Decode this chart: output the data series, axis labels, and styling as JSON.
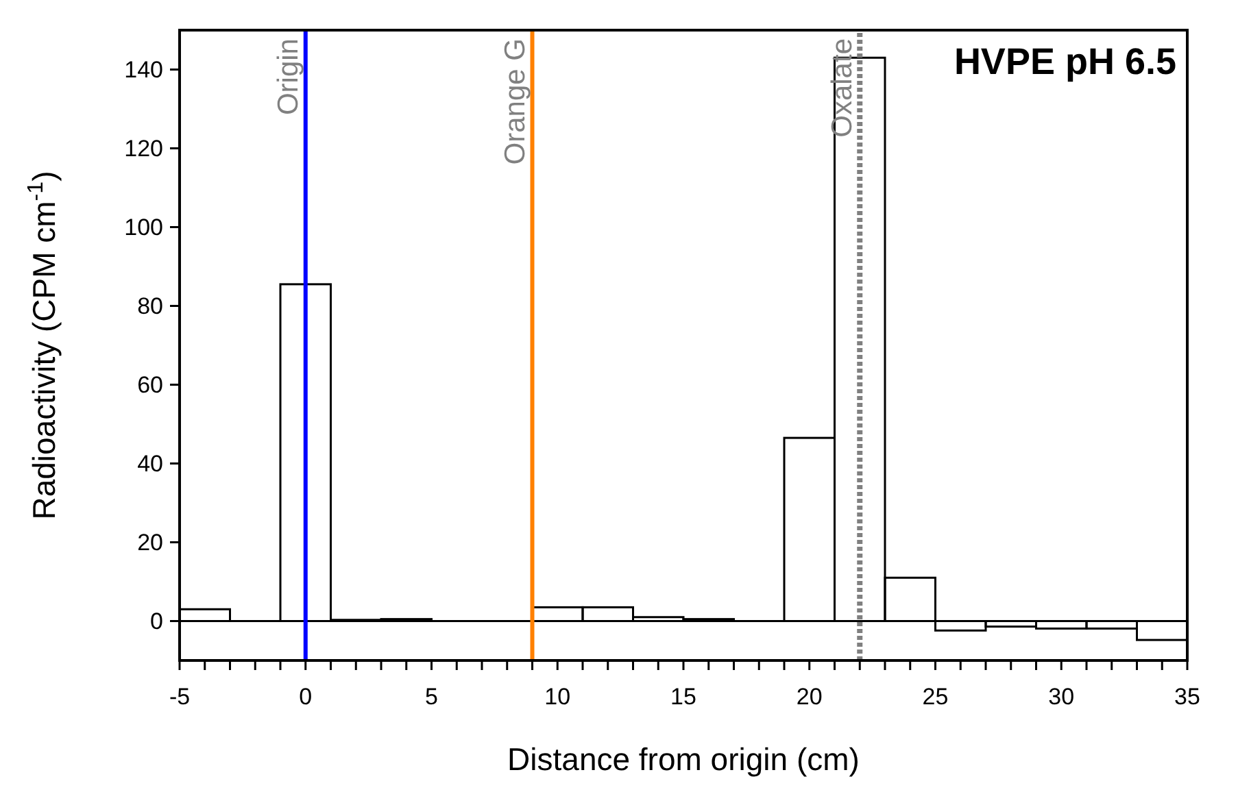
{
  "chart_data": {
    "type": "histogram",
    "title": "HVPE pH 6.5",
    "xlabel": "Distance from origin (cm)",
    "ylabel": "Radioactivity (CPM cm$^{-1}$)",
    "bins": [
      -5,
      -3,
      -1,
      1,
      3,
      5,
      7,
      9,
      11,
      13,
      15,
      17,
      19,
      21,
      23,
      25,
      27,
      29,
      31,
      33,
      35
    ],
    "values": [
      3,
      0,
      85.5,
      0.3,
      0.5,
      0,
      0,
      3.5,
      3.5,
      1,
      0.5,
      0,
      46.5,
      143,
      11,
      -2.4,
      -1.4,
      -1.9,
      -1.9,
      -4.8
    ],
    "color": "#000000",
    "xlim": [
      -5,
      35
    ],
    "xticks": [
      -5,
      {
        "value": -4,
        "label": null
      },
      {
        "value": -3,
        "label": null
      },
      {
        "value": -2,
        "label": null
      },
      {
        "value": -1,
        "label": null
      },
      0,
      {
        "value": 1,
        "label": null
      },
      {
        "value": 2,
        "label": null
      },
      {
        "value": 3,
        "label": null
      },
      {
        "value": 4,
        "label": null
      },
      5,
      {
        "value": 6,
        "label": null
      },
      {
        "value": 7,
        "label": null
      },
      {
        "value": 8,
        "label": null
      },
      {
        "value": 9,
        "label": null
      },
      10,
      {
        "value": 11,
        "label": null
      },
      {
        "value": 12,
        "label": null
      },
      {
        "value": 13,
        "label": null
      },
      {
        "value": 14,
        "label": null
      },
      15,
      {
        "value": 16,
        "label": null
      },
      {
        "value": 17,
        "label": null
      },
      {
        "value": 18,
        "label": null
      },
      {
        "value": 19,
        "label": null
      },
      20,
      {
        "value": 21,
        "label": null
      },
      {
        "value": 22,
        "label": null
      },
      {
        "value": 23,
        "label": null
      },
      {
        "value": 24,
        "label": null
      },
      25,
      {
        "value": 26,
        "label": null
      },
      {
        "value": 27,
        "label": null
      },
      {
        "value": 28,
        "label": null
      },
      {
        "value": 29,
        "label": null
      },
      30,
      {
        "value": 31,
        "label": null
      },
      {
        "value": 32,
        "label": null
      },
      {
        "value": 33,
        "label": null
      },
      {
        "value": 34,
        "label": null
      },
      35
    ],
    "ylim": [
      -10,
      150
    ],
    "yticks": [
      0,
      20,
      40,
      60,
      80,
      100,
      120,
      140
    ],
    "ref_lines": [
      {
        "axis": "x",
        "value": 0,
        "label": "Origin",
        "color": "#0000ff",
        "line_style": "solid"
      },
      {
        "axis": "x",
        "value": 9,
        "label": "Orange G",
        "color": "#ff8000",
        "line_style": "solid"
      },
      {
        "axis": "x",
        "value": 22,
        "label": "Oxalate",
        "color": "#808080",
        "line_style": "dashed"
      }
    ]
  }
}
